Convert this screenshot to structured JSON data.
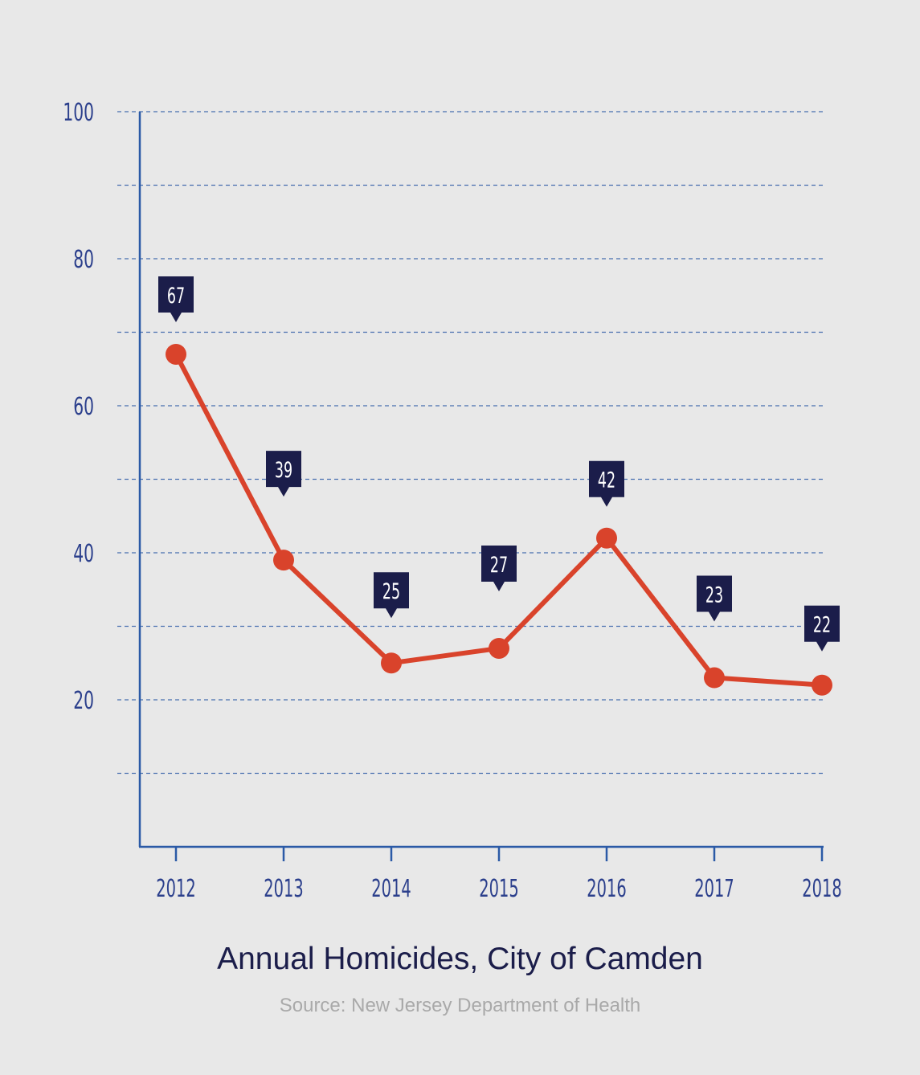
{
  "chart_data": {
    "type": "line",
    "title": "Annual Homicides, City of Camden",
    "source": "Source: New Jersey Department of Health",
    "categories": [
      "2012",
      "2013",
      "2014",
      "2015",
      "2016",
      "2017",
      "2018"
    ],
    "values": [
      67,
      39,
      25,
      27,
      42,
      23,
      22
    ],
    "data_labels": [
      "67",
      "39",
      "25",
      "27",
      "42",
      "23",
      "22"
    ],
    "xlabel": "",
    "ylabel": "",
    "ylim": [
      0,
      100
    ],
    "yticks": [
      20,
      40,
      60,
      80,
      100
    ],
    "ytick_labels": [
      "20",
      "40",
      "60",
      "80",
      "100"
    ],
    "grid": true,
    "grid_step": 10,
    "colors": {
      "line": "#d9432b",
      "axis": "#2b5aa6",
      "label_bg": "#1b1d4a",
      "tick_text": "#2b3f8c"
    }
  }
}
